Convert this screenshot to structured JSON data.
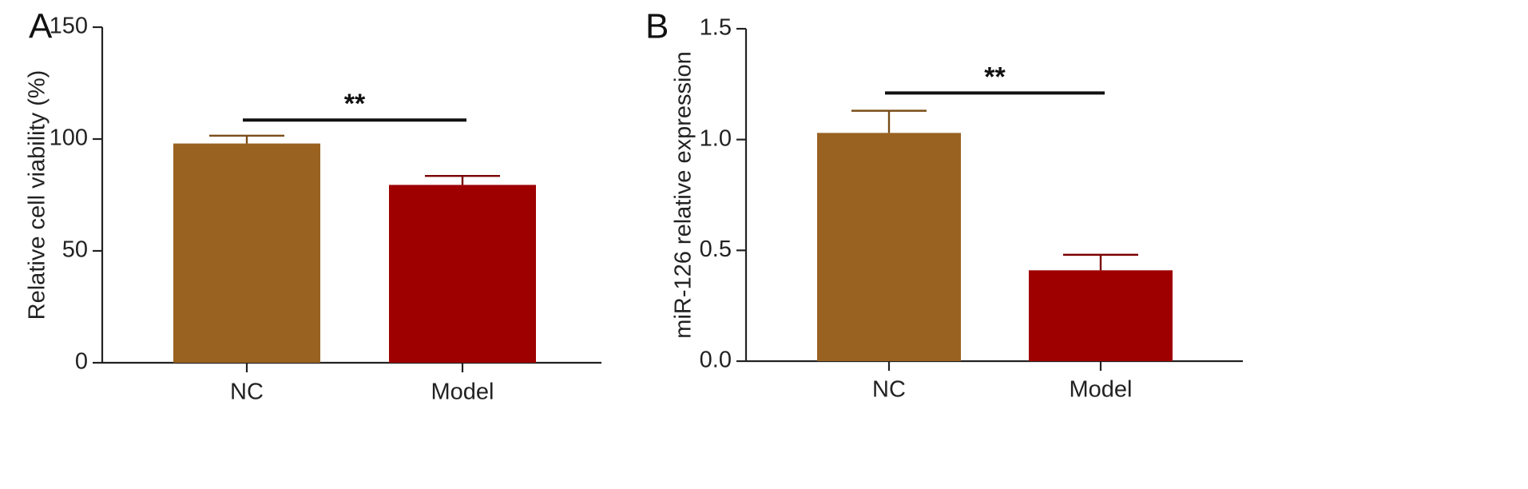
{
  "chart_data": [
    {
      "panel": "A",
      "type": "bar",
      "title": "",
      "xlabel": "",
      "ylabel": "Relative cell viability (%)",
      "ylim": [
        0,
        150
      ],
      "yticks": [
        0,
        50,
        100,
        150
      ],
      "ytick_labels": [
        "0",
        "50",
        "100",
        "150"
      ],
      "categories": [
        "NC",
        "Model"
      ],
      "values": [
        98,
        79.5
      ],
      "errors": [
        3.5,
        4
      ],
      "colors": [
        "#996220",
        "#9e0000"
      ],
      "error_bar_colors": [
        "#7a4d18",
        "#7a0000"
      ],
      "grid": false,
      "significance": {
        "from": "NC",
        "to": "Model",
        "label": "**",
        "y": 108.5
      }
    },
    {
      "panel": "B",
      "type": "bar",
      "title": "",
      "xlabel": "",
      "ylabel": "miR-126 relative expression",
      "ylim": [
        0,
        1.5
      ],
      "yticks": [
        0,
        0.5,
        1.0,
        1.5
      ],
      "ytick_labels": [
        "0.0",
        "0.5",
        "1.0",
        "1.5"
      ],
      "categories": [
        "NC",
        "Model"
      ],
      "values": [
        1.03,
        0.41
      ],
      "errors": [
        0.1,
        0.07
      ],
      "colors": [
        "#996220",
        "#9e0000"
      ],
      "error_bar_colors": [
        "#7a4d18",
        "#7a0000"
      ],
      "grid": false,
      "significance": {
        "from": "NC",
        "to": "Model",
        "label": "**",
        "y": 1.21
      }
    }
  ]
}
